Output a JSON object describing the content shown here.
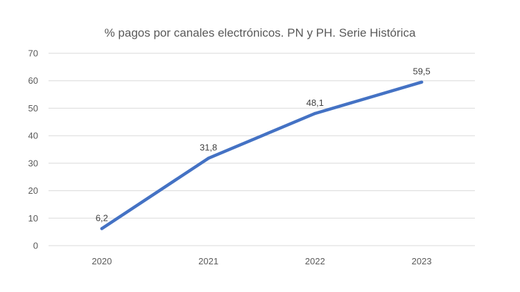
{
  "chart_data": {
    "type": "line",
    "title": "% pagos por canales electrónicos. PN y PH. Serie Histórica",
    "xlabel": "",
    "ylabel": "",
    "categories": [
      "2020",
      "2021",
      "2022",
      "2023"
    ],
    "series": [
      {
        "name": "% pagos por canales electrónicos",
        "values": [
          6.2,
          31.8,
          48.1,
          59.5
        ],
        "data_labels": [
          "6,2",
          "31,8",
          "48,1",
          "59,5"
        ],
        "color": "#4472C4"
      }
    ],
    "ylim": [
      0,
      70
    ],
    "yticks": [
      "0",
      "10",
      "20",
      "30",
      "40",
      "50",
      "60",
      "70"
    ],
    "grid": true,
    "legend": "none",
    "gridline_color": "#D9D9D9",
    "text_color": "#595959"
  }
}
